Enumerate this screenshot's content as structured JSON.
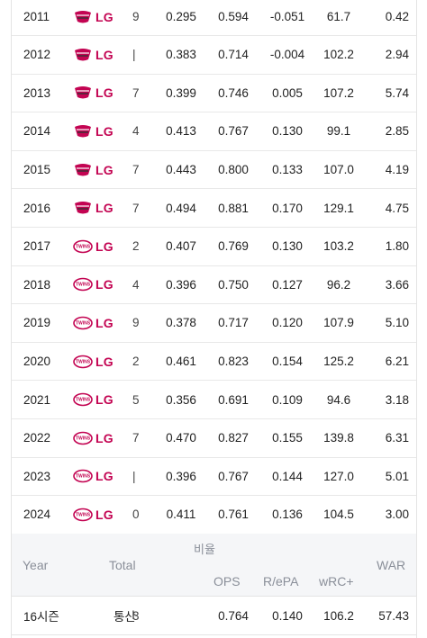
{
  "team_name": "LG",
  "brand_color": "#c30452",
  "rows": [
    {
      "year": "2011",
      "logo": "lg-twins-emblem-old",
      "clipped": "9",
      "obp": "0.295",
      "ops": "0.594",
      "repa": "-0.051",
      "wrc": "61.7",
      "war": "0.42"
    },
    {
      "year": "2012",
      "logo": "lg-twins-emblem-old",
      "clipped": "|",
      "obp": "0.383",
      "ops": "0.714",
      "repa": "-0.004",
      "wrc": "102.2",
      "war": "2.94"
    },
    {
      "year": "2013",
      "logo": "lg-twins-emblem-old",
      "clipped": "7",
      "obp": "0.399",
      "ops": "0.746",
      "repa": "0.005",
      "wrc": "107.2",
      "war": "5.74"
    },
    {
      "year": "2014",
      "logo": "lg-twins-emblem-old",
      "clipped": "4",
      "obp": "0.413",
      "ops": "0.767",
      "repa": "0.130",
      "wrc": "99.1",
      "war": "2.85"
    },
    {
      "year": "2015",
      "logo": "lg-twins-emblem-old",
      "clipped": "7",
      "obp": "0.443",
      "ops": "0.800",
      "repa": "0.133",
      "wrc": "107.0",
      "war": "4.19"
    },
    {
      "year": "2016",
      "logo": "lg-twins-emblem-old",
      "clipped": "7",
      "obp": "0.494",
      "ops": "0.881",
      "repa": "0.170",
      "wrc": "129.1",
      "war": "4.75"
    },
    {
      "year": "2017",
      "logo": "lg-twins-emblem-new",
      "clipped": "2",
      "obp": "0.407",
      "ops": "0.769",
      "repa": "0.130",
      "wrc": "103.2",
      "war": "1.80"
    },
    {
      "year": "2018",
      "logo": "lg-twins-emblem-new",
      "clipped": "4",
      "obp": "0.396",
      "ops": "0.750",
      "repa": "0.127",
      "wrc": "96.2",
      "war": "3.66"
    },
    {
      "year": "2019",
      "logo": "lg-twins-emblem-new",
      "clipped": "9",
      "obp": "0.378",
      "ops": "0.717",
      "repa": "0.120",
      "wrc": "107.9",
      "war": "5.10"
    },
    {
      "year": "2020",
      "logo": "lg-twins-emblem-new",
      "clipped": "2",
      "obp": "0.461",
      "ops": "0.823",
      "repa": "0.154",
      "wrc": "125.2",
      "war": "6.21"
    },
    {
      "year": "2021",
      "logo": "lg-twins-emblem-new",
      "clipped": "5",
      "obp": "0.356",
      "ops": "0.691",
      "repa": "0.109",
      "wrc": "94.6",
      "war": "3.18"
    },
    {
      "year": "2022",
      "logo": "lg-twins-emblem-new",
      "clipped": "7",
      "obp": "0.470",
      "ops": "0.827",
      "repa": "0.155",
      "wrc": "139.8",
      "war": "6.31"
    },
    {
      "year": "2023",
      "logo": "lg-twins-emblem-new",
      "clipped": "|",
      "obp": "0.396",
      "ops": "0.767",
      "repa": "0.144",
      "wrc": "127.0",
      "war": "5.01"
    },
    {
      "year": "2024",
      "logo": "lg-twins-emblem-new",
      "clipped": "0",
      "obp": "0.411",
      "ops": "0.761",
      "repa": "0.136",
      "wrc": "104.5",
      "war": "3.00"
    }
  ],
  "summary_header": {
    "year": "Year",
    "total": "Total",
    "ratio_group": "비율",
    "ops": "OPS",
    "repa": "R/ePA",
    "wrc": "wRC+",
    "war": "WAR"
  },
  "totals": {
    "seasons": "16시즌",
    "label": "통산",
    "clipped": "3",
    "ops": "0.764",
    "repa": "0.140",
    "wrc": "106.2",
    "war": "57.43"
  }
}
